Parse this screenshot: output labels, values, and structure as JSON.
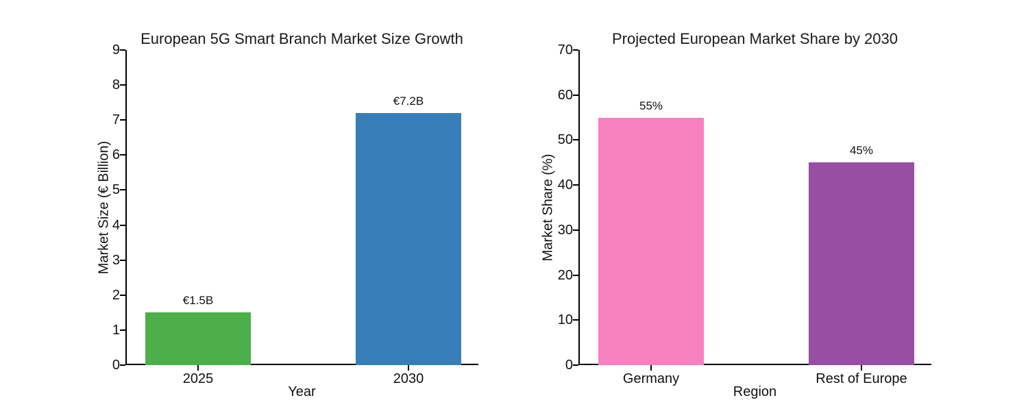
{
  "page": {
    "background_color": "#ffffff",
    "text_color": "#1a1a1a"
  },
  "chart_data": [
    {
      "type": "bar",
      "title": "European 5G Smart Branch Market Size Growth",
      "xlabel": "Year",
      "ylabel": "Market Size (€ Billion)",
      "categories": [
        "2025",
        "2030"
      ],
      "values": [
        1.5,
        7.2
      ],
      "value_labels": [
        "€1.5B",
        "€7.2B"
      ],
      "bar_colors": [
        "#4daf4a",
        "#377eb8"
      ],
      "ylim": [
        0,
        9
      ],
      "ytick_step": 1,
      "grid": false,
      "legend": false
    },
    {
      "type": "bar",
      "title": "Projected European Market Share by 2030",
      "xlabel": "Region",
      "ylabel": "Market Share (%)",
      "categories": [
        "Germany",
        "Rest of Europe"
      ],
      "values": [
        55,
        45
      ],
      "value_labels": [
        "55%",
        "45%"
      ],
      "bar_colors": [
        "#f781bf",
        "#984ea3"
      ],
      "ylim": [
        0,
        70
      ],
      "ytick_step": 10,
      "grid": false,
      "legend": false
    }
  ]
}
